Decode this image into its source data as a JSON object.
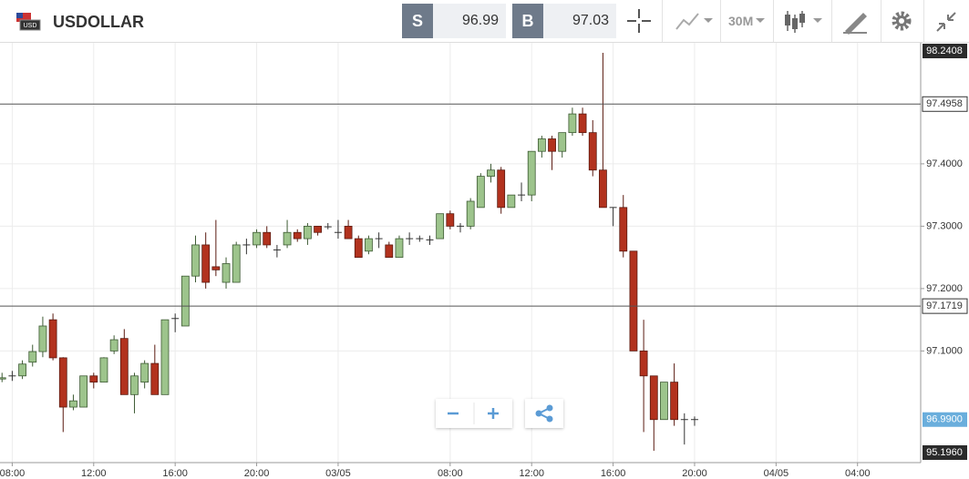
{
  "toolbar": {
    "symbol": "USDOLLAR",
    "sell_label": "S",
    "sell_price": "96.99",
    "buy_label": "B",
    "buy_price": "97.03",
    "timeframe": "30M"
  },
  "chart_data": {
    "type": "candlestick",
    "x": [
      0,
      1,
      2,
      3,
      4,
      5,
      6,
      7,
      8,
      9,
      10,
      11,
      12,
      13,
      14,
      15,
      16,
      17,
      18,
      19,
      20,
      21,
      22,
      23,
      24,
      25,
      26,
      27,
      28,
      29,
      30,
      31,
      32,
      33,
      34,
      35,
      36,
      37,
      38,
      39,
      40,
      41,
      42,
      43,
      44,
      45,
      46,
      47,
      48,
      49,
      50,
      51,
      52,
      53,
      54,
      55,
      56,
      57,
      58,
      59,
      60,
      61,
      62,
      63,
      64,
      65,
      66,
      67,
      68
    ],
    "open": [
      97.055,
      97.06,
      97.06,
      97.082,
      97.099,
      97.15,
      97.089,
      97.01,
      97.01,
      97.06,
      97.05,
      97.1,
      97.12,
      97.03,
      97.05,
      97.08,
      97.03,
      97.152,
      97.14,
      97.22,
      97.27,
      97.235,
      97.21,
      97.21,
      97.27,
      97.27,
      97.29,
      97.262,
      97.27,
      97.29,
      97.28,
      97.3,
      97.299,
      97.29,
      97.3,
      97.28,
      97.26,
      97.28,
      97.27,
      97.25,
      97.28,
      97.28,
      97.278,
      97.28,
      97.32,
      97.3,
      97.3,
      97.33,
      97.38,
      97.39,
      97.33,
      97.35,
      97.35,
      97.42,
      97.44,
      97.42,
      97.45,
      97.48,
      97.45,
      97.39,
      97.33,
      97.33,
      97.26,
      97.1,
      97.06,
      96.99,
      97.05,
      96.99,
      96.99
    ],
    "close": [
      97.057,
      97.06,
      97.079,
      97.099,
      97.14,
      97.089,
      97.01,
      97.02,
      97.06,
      97.05,
      97.089,
      97.118,
      97.03,
      97.06,
      97.08,
      97.03,
      97.15,
      97.152,
      97.22,
      97.27,
      97.21,
      97.23,
      97.24,
      97.27,
      97.27,
      97.29,
      97.27,
      97.262,
      97.29,
      97.28,
      97.3,
      97.29,
      97.299,
      97.29,
      97.28,
      97.25,
      97.28,
      97.28,
      97.25,
      97.28,
      97.28,
      97.28,
      97.278,
      97.32,
      97.3,
      97.3,
      97.34,
      97.38,
      97.39,
      97.33,
      97.35,
      97.35,
      97.42,
      97.44,
      97.42,
      97.45,
      97.48,
      97.45,
      97.39,
      97.33,
      97.33,
      97.26,
      97.1,
      97.06,
      96.99,
      97.05,
      96.99,
      96.99,
      96.99
    ],
    "high": [
      97.065,
      97.068,
      97.085,
      97.11,
      97.155,
      97.16,
      97.09,
      97.03,
      97.06,
      97.065,
      97.09,
      97.125,
      97.135,
      97.065,
      97.085,
      97.11,
      97.15,
      97.16,
      97.22,
      97.285,
      97.29,
      97.31,
      97.25,
      97.275,
      97.28,
      97.295,
      97.3,
      97.27,
      97.31,
      97.295,
      97.305,
      97.3,
      97.305,
      97.31,
      97.31,
      97.285,
      97.285,
      97.29,
      97.275,
      97.285,
      97.29,
      97.285,
      97.285,
      97.32,
      97.325,
      97.305,
      97.345,
      97.385,
      97.4,
      97.395,
      97.35,
      97.37,
      97.42,
      97.445,
      97.445,
      97.45,
      97.49,
      97.49,
      97.47,
      97.578,
      97.33,
      97.35,
      97.26,
      97.15,
      97.06,
      97.05,
      97.08,
      97.0,
      96.995
    ],
    "low": [
      97.05,
      97.052,
      97.055,
      97.075,
      97.09,
      97.085,
      96.97,
      97.005,
      97.01,
      97.04,
      97.05,
      97.095,
      97.03,
      97.0,
      97.04,
      97.03,
      97.03,
      97.13,
      97.14,
      97.21,
      97.2,
      97.22,
      97.2,
      97.21,
      97.255,
      97.265,
      97.265,
      97.25,
      97.265,
      97.275,
      97.27,
      97.285,
      97.295,
      97.28,
      97.28,
      97.25,
      97.255,
      97.265,
      97.25,
      97.25,
      97.27,
      97.275,
      97.27,
      97.28,
      97.295,
      97.29,
      97.295,
      97.33,
      97.37,
      97.32,
      97.33,
      97.34,
      97.34,
      97.41,
      97.39,
      97.41,
      97.445,
      97.445,
      97.38,
      97.33,
      97.3,
      97.25,
      97.1,
      96.97,
      96.94,
      96.99,
      96.98,
      96.95,
      96.98
    ],
    "up_color": "#9dc48c",
    "down_color": "#b2321e",
    "xlim": [
      -0.2,
      90.2
    ],
    "xticks": [
      {
        "value": 1,
        "label": "08:00"
      },
      {
        "value": 9,
        "label": "12:00"
      },
      {
        "value": 17,
        "label": "16:00"
      },
      {
        "value": 25,
        "label": "20:00"
      },
      {
        "value": 33,
        "label": "03/05"
      },
      {
        "value": 44,
        "label": "08:00"
      },
      {
        "value": 52,
        "label": "12:00"
      },
      {
        "value": 60,
        "label": "16:00"
      },
      {
        "value": 68,
        "label": "20:00"
      },
      {
        "value": 76,
        "label": "04/05"
      },
      {
        "value": 84,
        "label": "04:00"
      }
    ],
    "ylim": [
      96.921,
      97.594
    ],
    "yticks": [
      {
        "value": 97.1,
        "label": "97.1000"
      },
      {
        "value": 97.2,
        "label": "97.2000"
      },
      {
        "value": 97.3,
        "label": "97.3000"
      },
      {
        "value": 97.4,
        "label": "97.4000"
      }
    ],
    "grid": true,
    "lines": [
      97.4958,
      97.1719
    ],
    "current_price": {
      "value": 96.99,
      "label": "96.9900"
    },
    "axis_extreme_labels": [
      "98.2408",
      "95.1960"
    ]
  }
}
